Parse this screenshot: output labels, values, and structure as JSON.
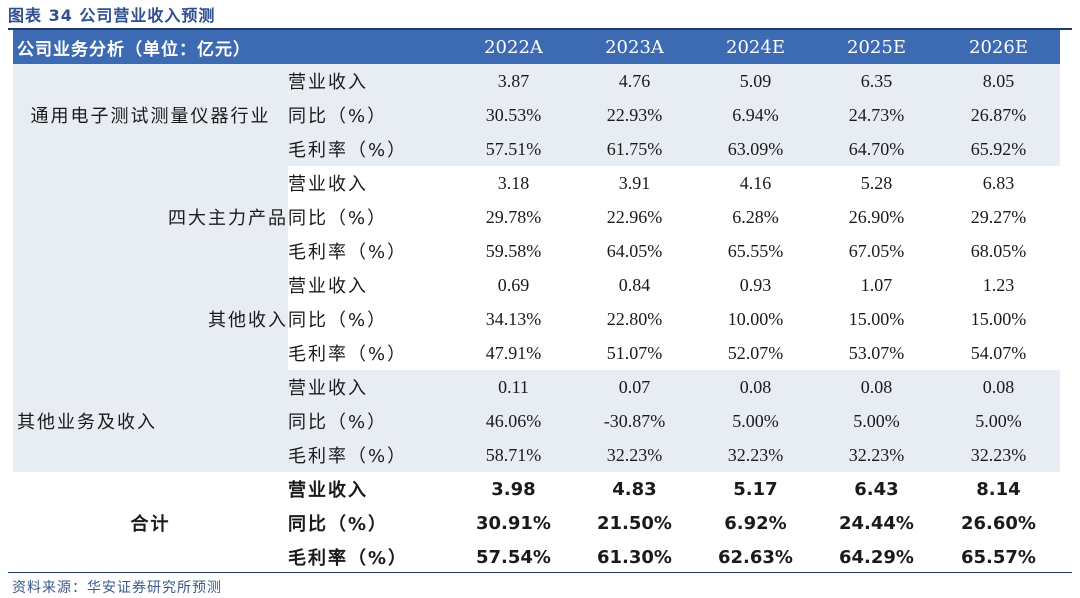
{
  "caption": "图表 34 公司营业收入预测",
  "header": {
    "label": "公司业务分析（单位：亿元）",
    "years": [
      "2022A",
      "2023A",
      "2024E",
      "2025E",
      "2026E"
    ]
  },
  "segments": [
    {
      "name": "通用电子测试测量仪器行业",
      "rows": [
        {
          "metric": "营业收入",
          "values": [
            "3.87",
            "4.76",
            "5.09",
            "6.35",
            "8.05"
          ]
        },
        {
          "metric": "同比（%）",
          "values": [
            "30.53%",
            "22.93%",
            "6.94%",
            "24.73%",
            "26.87%"
          ]
        },
        {
          "metric": "毛利率（%）",
          "values": [
            "57.51%",
            "61.75%",
            "63.09%",
            "64.70%",
            "65.92%"
          ]
        }
      ]
    },
    {
      "name": "四大主力产品",
      "rows": [
        {
          "metric": "营业收入",
          "values": [
            "3.18",
            "3.91",
            "4.16",
            "5.28",
            "6.83"
          ]
        },
        {
          "metric": "同比（%）",
          "values": [
            "29.78%",
            "22.96%",
            "6.28%",
            "26.90%",
            "29.27%"
          ]
        },
        {
          "metric": "毛利率（%）",
          "values": [
            "59.58%",
            "64.05%",
            "65.55%",
            "67.05%",
            "68.05%"
          ]
        }
      ]
    },
    {
      "name": "其他收入",
      "rows": [
        {
          "metric": "营业收入",
          "values": [
            "0.69",
            "0.84",
            "0.93",
            "1.07",
            "1.23"
          ]
        },
        {
          "metric": "同比（%）",
          "values": [
            "34.13%",
            "22.80%",
            "10.00%",
            "15.00%",
            "15.00%"
          ]
        },
        {
          "metric": "毛利率（%）",
          "values": [
            "47.91%",
            "51.07%",
            "52.07%",
            "53.07%",
            "54.07%"
          ]
        }
      ]
    },
    {
      "name": "其他业务及收入",
      "rows": [
        {
          "metric": "营业收入",
          "values": [
            "0.11",
            "0.07",
            "0.08",
            "0.08",
            "0.08"
          ]
        },
        {
          "metric": "同比（%）",
          "values": [
            "46.06%",
            "-30.87%",
            "5.00%",
            "5.00%",
            "5.00%"
          ]
        },
        {
          "metric": "毛利率（%）",
          "values": [
            "58.71%",
            "32.23%",
            "32.23%",
            "32.23%",
            "32.23%"
          ]
        }
      ]
    },
    {
      "name": "合计",
      "rows": [
        {
          "metric": "营业收入",
          "values": [
            "3.98",
            "4.83",
            "5.17",
            "6.43",
            "8.14"
          ]
        },
        {
          "metric": "同比（%）",
          "values": [
            "30.91%",
            "21.50%",
            "6.92%",
            "24.44%",
            "26.60%"
          ]
        },
        {
          "metric": "毛利率（%）",
          "values": [
            "57.54%",
            "61.30%",
            "62.63%",
            "64.29%",
            "65.57%"
          ]
        }
      ]
    }
  ],
  "source": "资料来源：华安证券研究所预测",
  "colors": {
    "header_bg": "#3c6ab3",
    "shade": "#e8ecf3",
    "caption": "#2f4f8f"
  }
}
